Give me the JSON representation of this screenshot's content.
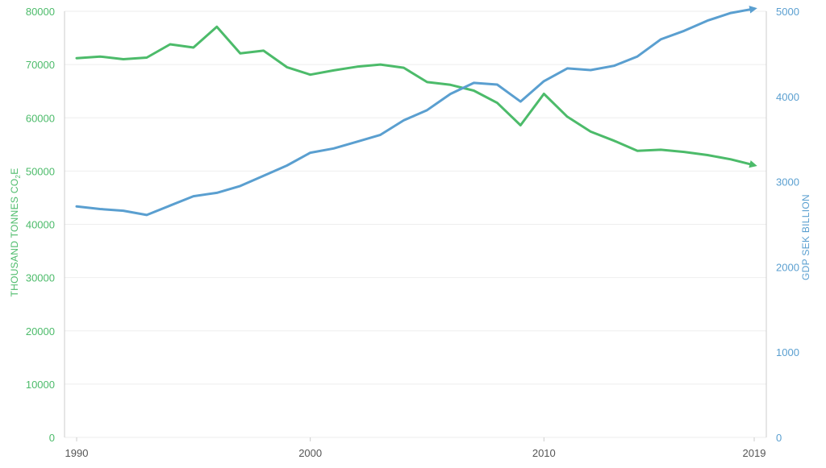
{
  "chart_data": {
    "type": "line",
    "colors": {
      "emissions": "#4cbb6a",
      "gdp": "#5a9fd0"
    },
    "x": [
      1990,
      1991,
      1992,
      1993,
      1994,
      1995,
      1996,
      1997,
      1998,
      1999,
      2000,
      2001,
      2002,
      2003,
      2004,
      2005,
      2006,
      2007,
      2008,
      2009,
      2010,
      2011,
      2012,
      2013,
      2014,
      2015,
      2016,
      2017,
      2018,
      2019
    ],
    "x_ticks": [
      "1990",
      "2000",
      "2010",
      "2019"
    ],
    "y_left": {
      "label_main": "THOUSAND TONNES CO",
      "label_sub": "2",
      "label_end": "E",
      "ticks": [
        "0",
        "10000",
        "20000",
        "30000",
        "40000",
        "50000",
        "60000",
        "70000",
        "80000"
      ],
      "lim": [
        0,
        80000
      ]
    },
    "y_right": {
      "label": "GDP SEK  BILLION",
      "ticks": [
        "0",
        "1000",
        "2000",
        "3000",
        "4000",
        "5000"
      ],
      "lim": [
        0,
        5000
      ]
    },
    "series": [
      {
        "axis": "left",
        "values": [
          71200,
          71500,
          71000,
          71300,
          73800,
          73200,
          77100,
          72100,
          72600,
          69500,
          68100,
          68900,
          69600,
          70000,
          69400,
          66700,
          66200,
          65100,
          62800,
          58600,
          64500,
          60200,
          57400,
          55700,
          53800,
          54000,
          53600,
          53000,
          52200,
          51100
        ]
      },
      {
        "axis": "right",
        "values": [
          2710,
          2680,
          2660,
          2610,
          2720,
          2830,
          2870,
          2950,
          3070,
          3190,
          3340,
          3390,
          3470,
          3550,
          3720,
          3840,
          4030,
          4160,
          4140,
          3940,
          4180,
          4330,
          4310,
          4360,
          4470,
          4670,
          4770,
          4890,
          4980,
          5030
        ]
      }
    ]
  }
}
